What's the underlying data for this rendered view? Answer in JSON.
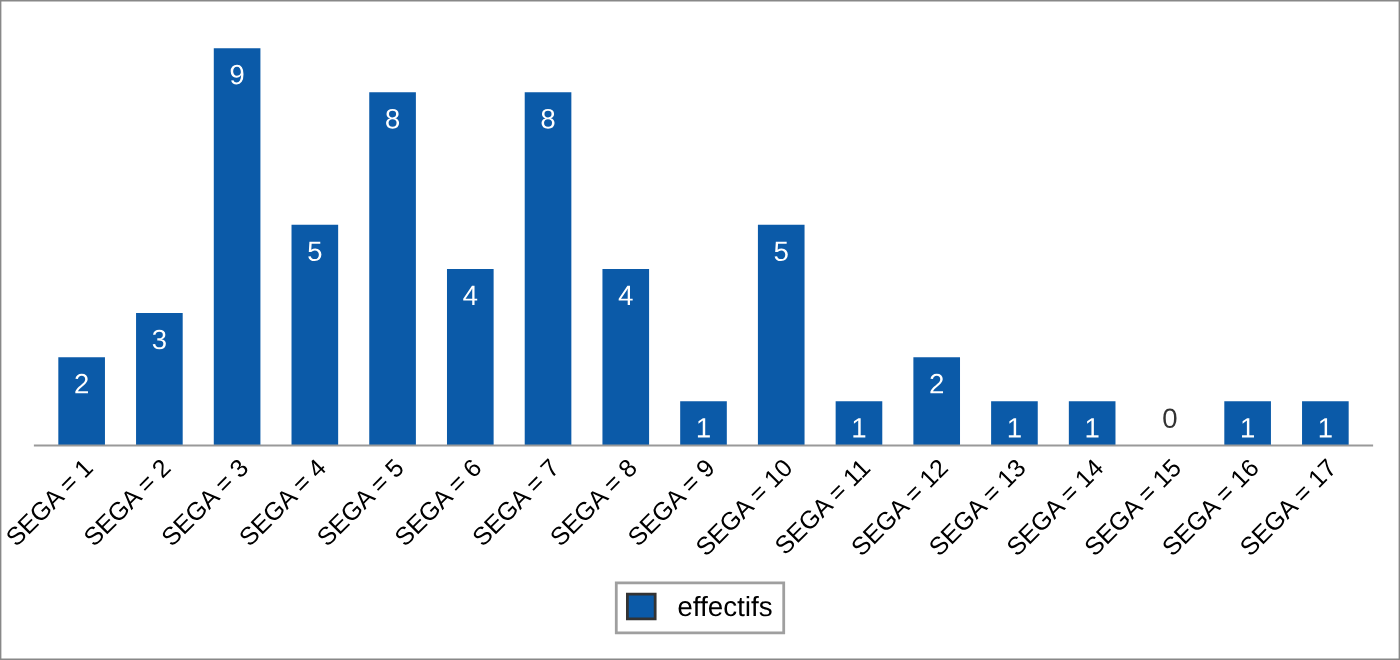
{
  "chart_data": {
    "type": "bar",
    "categories": [
      "SEGA = 1",
      "SEGA = 2",
      "SEGA = 3",
      "SEGA = 4",
      "SEGA = 5",
      "SEGA = 6",
      "SEGA = 7",
      "SEGA = 8",
      "SEGA = 9",
      "SEGA = 10",
      "SEGA = 11",
      "SEGA = 12",
      "SEGA = 13",
      "SEGA = 14",
      "SEGA = 15",
      "SEGA = 16",
      "SEGA = 17"
    ],
    "series": [
      {
        "name": "effectifs",
        "color": "#0b5aa8",
        "values": [
          2,
          3,
          9,
          5,
          8,
          4,
          8,
          4,
          1,
          5,
          1,
          2,
          1,
          1,
          0,
          1,
          1
        ]
      }
    ],
    "data_labels": true,
    "legend": "bottom",
    "grid": false
  }
}
